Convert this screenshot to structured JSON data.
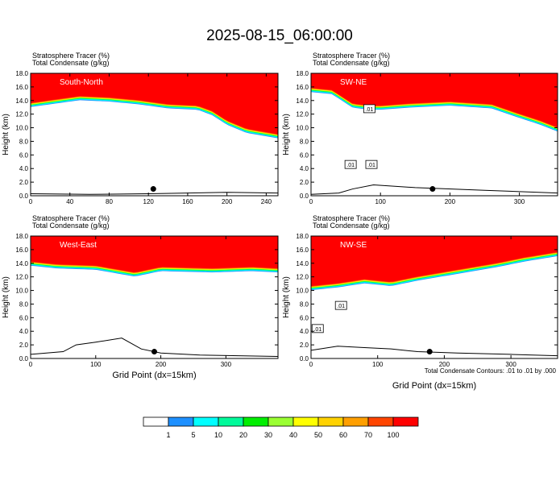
{
  "page": {
    "title": "2025-08-15_06:00:00",
    "colorbar": {
      "colors": [
        "#ffffff",
        "#1e90ff",
        "#00ffff",
        "#00fa9a",
        "#00ee00",
        "#9aff32",
        "#ffff00",
        "#ffd200",
        "#ff9f00",
        "#ff4500",
        "#ff0000"
      ],
      "labels": [
        "1",
        "5",
        "10",
        "20",
        "30",
        "40",
        "50",
        "60",
        "70",
        "100"
      ]
    },
    "contour_note": "Total Condensate Contours: .01 to .01 by .000",
    "xlabel": "Grid Point (dx=15km)"
  },
  "chart_data": [
    {
      "type": "heatmap",
      "panel": "South-North",
      "title": [
        "Stratosphere Tracer   (%)",
        "Total Condensate   (g/kg)"
      ],
      "ylabel": "Height (km)",
      "xlabel": "",
      "xlim": [
        0,
        252
      ],
      "xticks": [
        0,
        40,
        80,
        120,
        160,
        200,
        240
      ],
      "ylim": [
        0,
        18
      ],
      "yticks": [
        0,
        2,
        4,
        6,
        8,
        10,
        12,
        14,
        16,
        18
      ],
      "tracer_base_km": [
        [
          0,
          13.6
        ],
        [
          20,
          14.0
        ],
        [
          50,
          14.6
        ],
        [
          80,
          14.4
        ],
        [
          110,
          14.0
        ],
        [
          140,
          13.4
        ],
        [
          170,
          13.2
        ],
        [
          185,
          12.4
        ],
        [
          200,
          11.0
        ],
        [
          220,
          9.8
        ],
        [
          240,
          9.3
        ],
        [
          252,
          9.0
        ]
      ],
      "terrain_km": [
        [
          0,
          0.3
        ],
        [
          60,
          0.2
        ],
        [
          120,
          0.3
        ],
        [
          200,
          0.5
        ],
        [
          252,
          0.4
        ]
      ],
      "contour_labels": [],
      "marker": [
        125,
        1.0
      ]
    },
    {
      "type": "heatmap",
      "panel": "SW-NE",
      "title": [
        "Stratosphere Tracer   (%)",
        "Total Condensate   (g/kg)"
      ],
      "ylabel": "Height (km)",
      "xlabel": "",
      "xlim": [
        0,
        355
      ],
      "xticks": [
        0,
        100,
        200,
        300
      ],
      "ylim": [
        0,
        18
      ],
      "yticks": [
        0,
        2,
        4,
        6,
        8,
        10,
        12,
        14,
        16,
        18
      ],
      "tracer_base_km": [
        [
          0,
          15.8
        ],
        [
          30,
          15.5
        ],
        [
          60,
          13.5
        ],
        [
          85,
          13.2
        ],
        [
          100,
          13.2
        ],
        [
          140,
          13.5
        ],
        [
          200,
          13.8
        ],
        [
          260,
          13.4
        ],
        [
          300,
          12.0
        ],
        [
          330,
          11.0
        ],
        [
          355,
          10.0
        ]
      ],
      "terrain_km": [
        [
          0,
          0.2
        ],
        [
          40,
          0.4
        ],
        [
          60,
          1.0
        ],
        [
          90,
          1.6
        ],
        [
          150,
          1.2
        ],
        [
          250,
          0.8
        ],
        [
          355,
          0.4
        ]
      ],
      "contour_labels": [
        {
          "x": 84,
          "y": 12.8,
          "text": ".01"
        },
        {
          "x": 57,
          "y": 4.6,
          "text": ".01"
        },
        {
          "x": 87,
          "y": 4.6,
          "text": ".01"
        }
      ],
      "marker": [
        175,
        1.0
      ]
    },
    {
      "type": "heatmap",
      "panel": "West-East",
      "title": [
        "Stratosphere Tracer   (%)",
        "Total Condensate   (g/kg)"
      ],
      "ylabel": "Height (km)",
      "xlabel": "",
      "xlim": [
        0,
        380
      ],
      "xticks": [
        0,
        100,
        200,
        300
      ],
      "ylim": [
        0,
        18
      ],
      "yticks": [
        0,
        2,
        4,
        6,
        8,
        10,
        12,
        14,
        16,
        18
      ],
      "tracer_base_km": [
        [
          0,
          14.2
        ],
        [
          40,
          13.8
        ],
        [
          100,
          13.6
        ],
        [
          160,
          12.6
        ],
        [
          200,
          13.4
        ],
        [
          280,
          13.2
        ],
        [
          340,
          13.4
        ],
        [
          380,
          13.2
        ]
      ],
      "terrain_km": [
        [
          0,
          0.6
        ],
        [
          50,
          1.0
        ],
        [
          70,
          2.0
        ],
        [
          100,
          2.4
        ],
        [
          140,
          3.0
        ],
        [
          170,
          1.4
        ],
        [
          200,
          0.8
        ],
        [
          260,
          0.5
        ],
        [
          380,
          0.3
        ]
      ],
      "contour_labels": [],
      "marker": [
        190,
        1.0
      ]
    },
    {
      "type": "heatmap",
      "panel": "NW-SE",
      "title": [
        "Stratosphere Tracer   (%)",
        "Total Condensate   (g/kg)"
      ],
      "ylabel": "Height (km)",
      "xlabel": "Grid Point (dx=15km)",
      "xlim": [
        0,
        370
      ],
      "xticks": [
        0,
        100,
        200,
        300
      ],
      "ylim": [
        0,
        18
      ],
      "yticks": [
        0,
        2,
        4,
        6,
        8,
        10,
        12,
        14,
        16,
        18
      ],
      "tracer_base_km": [
        [
          0,
          10.6
        ],
        [
          40,
          11.0
        ],
        [
          80,
          11.6
        ],
        [
          120,
          11.2
        ],
        [
          160,
          12.0
        ],
        [
          220,
          13.0
        ],
        [
          280,
          14.0
        ],
        [
          320,
          14.8
        ],
        [
          370,
          15.6
        ]
      ],
      "terrain_km": [
        [
          0,
          1.2
        ],
        [
          40,
          1.8
        ],
        [
          80,
          1.6
        ],
        [
          120,
          1.4
        ],
        [
          160,
          1.0
        ],
        [
          220,
          0.8
        ],
        [
          300,
          0.6
        ],
        [
          370,
          0.4
        ]
      ],
      "contour_labels": [
        {
          "x": 45,
          "y": 7.8,
          "text": ".01"
        },
        {
          "x": 10,
          "y": 4.4,
          "text": ".01"
        }
      ],
      "marker": [
        178,
        1.0
      ]
    }
  ]
}
